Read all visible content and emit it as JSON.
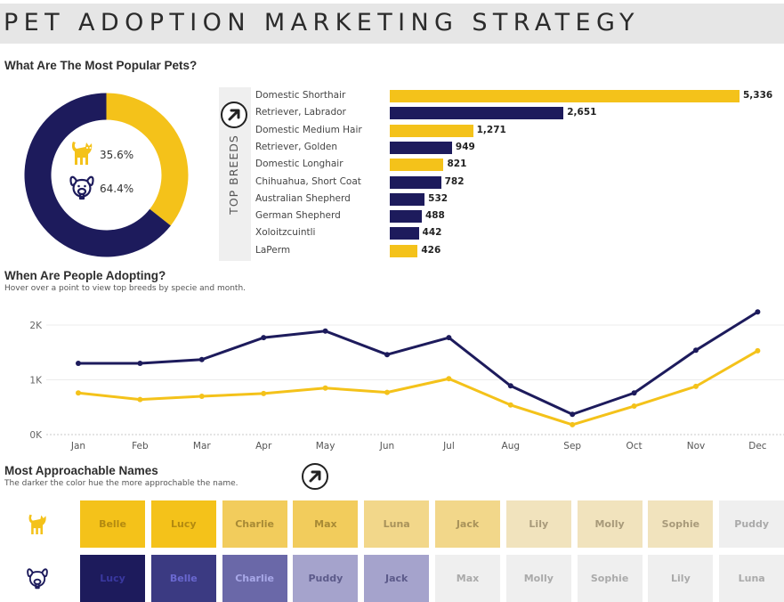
{
  "header": {
    "title": "PET ADOPTION MARKETING STRATEGY"
  },
  "colors": {
    "cat": "#f4c21a",
    "dog": "#1d1b5c",
    "gridline": "#ececec",
    "axis_text": "#666666"
  },
  "popular": {
    "title": "What Are The Most Popular Pets?",
    "cat_icon": "cat-icon",
    "dog_icon": "dog-icon",
    "cat_pct_label": "35.6%",
    "dog_pct_label": "64.4%"
  },
  "breeds": {
    "side_label": "TOP BREEDS",
    "arrow_icon": "arrow-up-right-icon"
  },
  "adopting": {
    "title": "When Are People Adopting?",
    "subtitle": "Hover over a point to view top breeds by specie and month."
  },
  "names": {
    "title": "Most Approachable Names",
    "subtitle": "The darker the color hue the more approchable the name.",
    "arrow_icon": "arrow-up-right-icon",
    "rows": [
      {
        "species": "cat",
        "icon": "cat-icon",
        "cells": [
          {
            "name": "Belle",
            "bg": "#f4c21a",
            "fg": "#b38a10"
          },
          {
            "name": "Lucy",
            "bg": "#f4c21a",
            "fg": "#b38a10"
          },
          {
            "name": "Charlie",
            "bg": "#f2cc5c",
            "fg": "#a88a35"
          },
          {
            "name": "Max",
            "bg": "#f2cc5c",
            "fg": "#a88a35"
          },
          {
            "name": "Luna",
            "bg": "#f2d78a",
            "fg": "#a8925a"
          },
          {
            "name": "Jack",
            "bg": "#f2d78a",
            "fg": "#a8925a"
          },
          {
            "name": "Lily",
            "bg": "#f1e3bd",
            "fg": "#a89a7a"
          },
          {
            "name": "Molly",
            "bg": "#f1e3bd",
            "fg": "#a89a7a"
          },
          {
            "name": "Sophie",
            "bg": "#f1e3bd",
            "fg": "#a89a7a"
          },
          {
            "name": "Puddy",
            "bg": "#efefef",
            "fg": "#aaaaaa"
          }
        ]
      },
      {
        "species": "dog",
        "icon": "dog-icon",
        "cells": [
          {
            "name": "Lucy",
            "bg": "#1d1b5c",
            "fg": "#3a38a0"
          },
          {
            "name": "Belle",
            "bg": "#3b3a82",
            "fg": "#6a68d0"
          },
          {
            "name": "Charlie",
            "bg": "#6a68a8",
            "fg": "#a8a8e8"
          },
          {
            "name": "Puddy",
            "bg": "#a5a3cc",
            "fg": "#5c5a8a"
          },
          {
            "name": "Jack",
            "bg": "#a5a3cc",
            "fg": "#5c5a8a"
          },
          {
            "name": "Max",
            "bg": "#efefef",
            "fg": "#aaaaaa"
          },
          {
            "name": "Molly",
            "bg": "#efefef",
            "fg": "#aaaaaa"
          },
          {
            "name": "Sophie",
            "bg": "#efefef",
            "fg": "#aaaaaa"
          },
          {
            "name": "Lily",
            "bg": "#efefef",
            "fg": "#aaaaaa"
          },
          {
            "name": "Luna",
            "bg": "#efefef",
            "fg": "#aaaaaa"
          }
        ]
      }
    ]
  },
  "chart_data": [
    {
      "type": "pie",
      "title": "What Are The Most Popular Pets?",
      "variant": "donut",
      "labels": [
        "Cat",
        "Dog"
      ],
      "values": [
        35.6,
        64.4
      ],
      "colors": [
        "#f4c21a",
        "#1d1b5c"
      ]
    },
    {
      "type": "bar",
      "orientation": "horizontal",
      "title": "TOP BREEDS",
      "categories": [
        "Domestic Shorthair",
        "Retriever, Labrador",
        "Domestic Medium Hair",
        "Retriever, Golden",
        "Domestic Longhair",
        "Chihuahua, Short Coat",
        "Australian Shepherd",
        "German Shepherd",
        "Xoloitzcuintli",
        "LaPerm"
      ],
      "values": [
        5336,
        2651,
        1271,
        949,
        821,
        782,
        532,
        488,
        442,
        426
      ],
      "value_labels": [
        "5,336",
        "2,651",
        "1,271",
        "949",
        "821",
        "782",
        "532",
        "488",
        "442",
        "426"
      ],
      "species": [
        "cat",
        "dog",
        "cat",
        "dog",
        "cat",
        "dog",
        "dog",
        "dog",
        "dog",
        "cat"
      ]
    },
    {
      "type": "line",
      "title": "When Are People Adopting?",
      "x": [
        "Jan",
        "Feb",
        "Mar",
        "Apr",
        "May",
        "Jun",
        "Jul",
        "Aug",
        "Sep",
        "Oct",
        "Nov",
        "Dec"
      ],
      "yticks": [
        "0K",
        "1K",
        "2K"
      ],
      "ylim": [
        0,
        2000
      ],
      "grid": true,
      "series": [
        {
          "name": "Dog",
          "color": "#1d1b5c",
          "values": [
            1300,
            1300,
            1370,
            1770,
            1890,
            1460,
            1770,
            890,
            370,
            760,
            1540,
            2240
          ]
        },
        {
          "name": "Cat",
          "color": "#f4c21a",
          "values": [
            760,
            640,
            700,
            750,
            850,
            770,
            1020,
            540,
            180,
            520,
            880,
            1530
          ]
        }
      ]
    }
  ]
}
